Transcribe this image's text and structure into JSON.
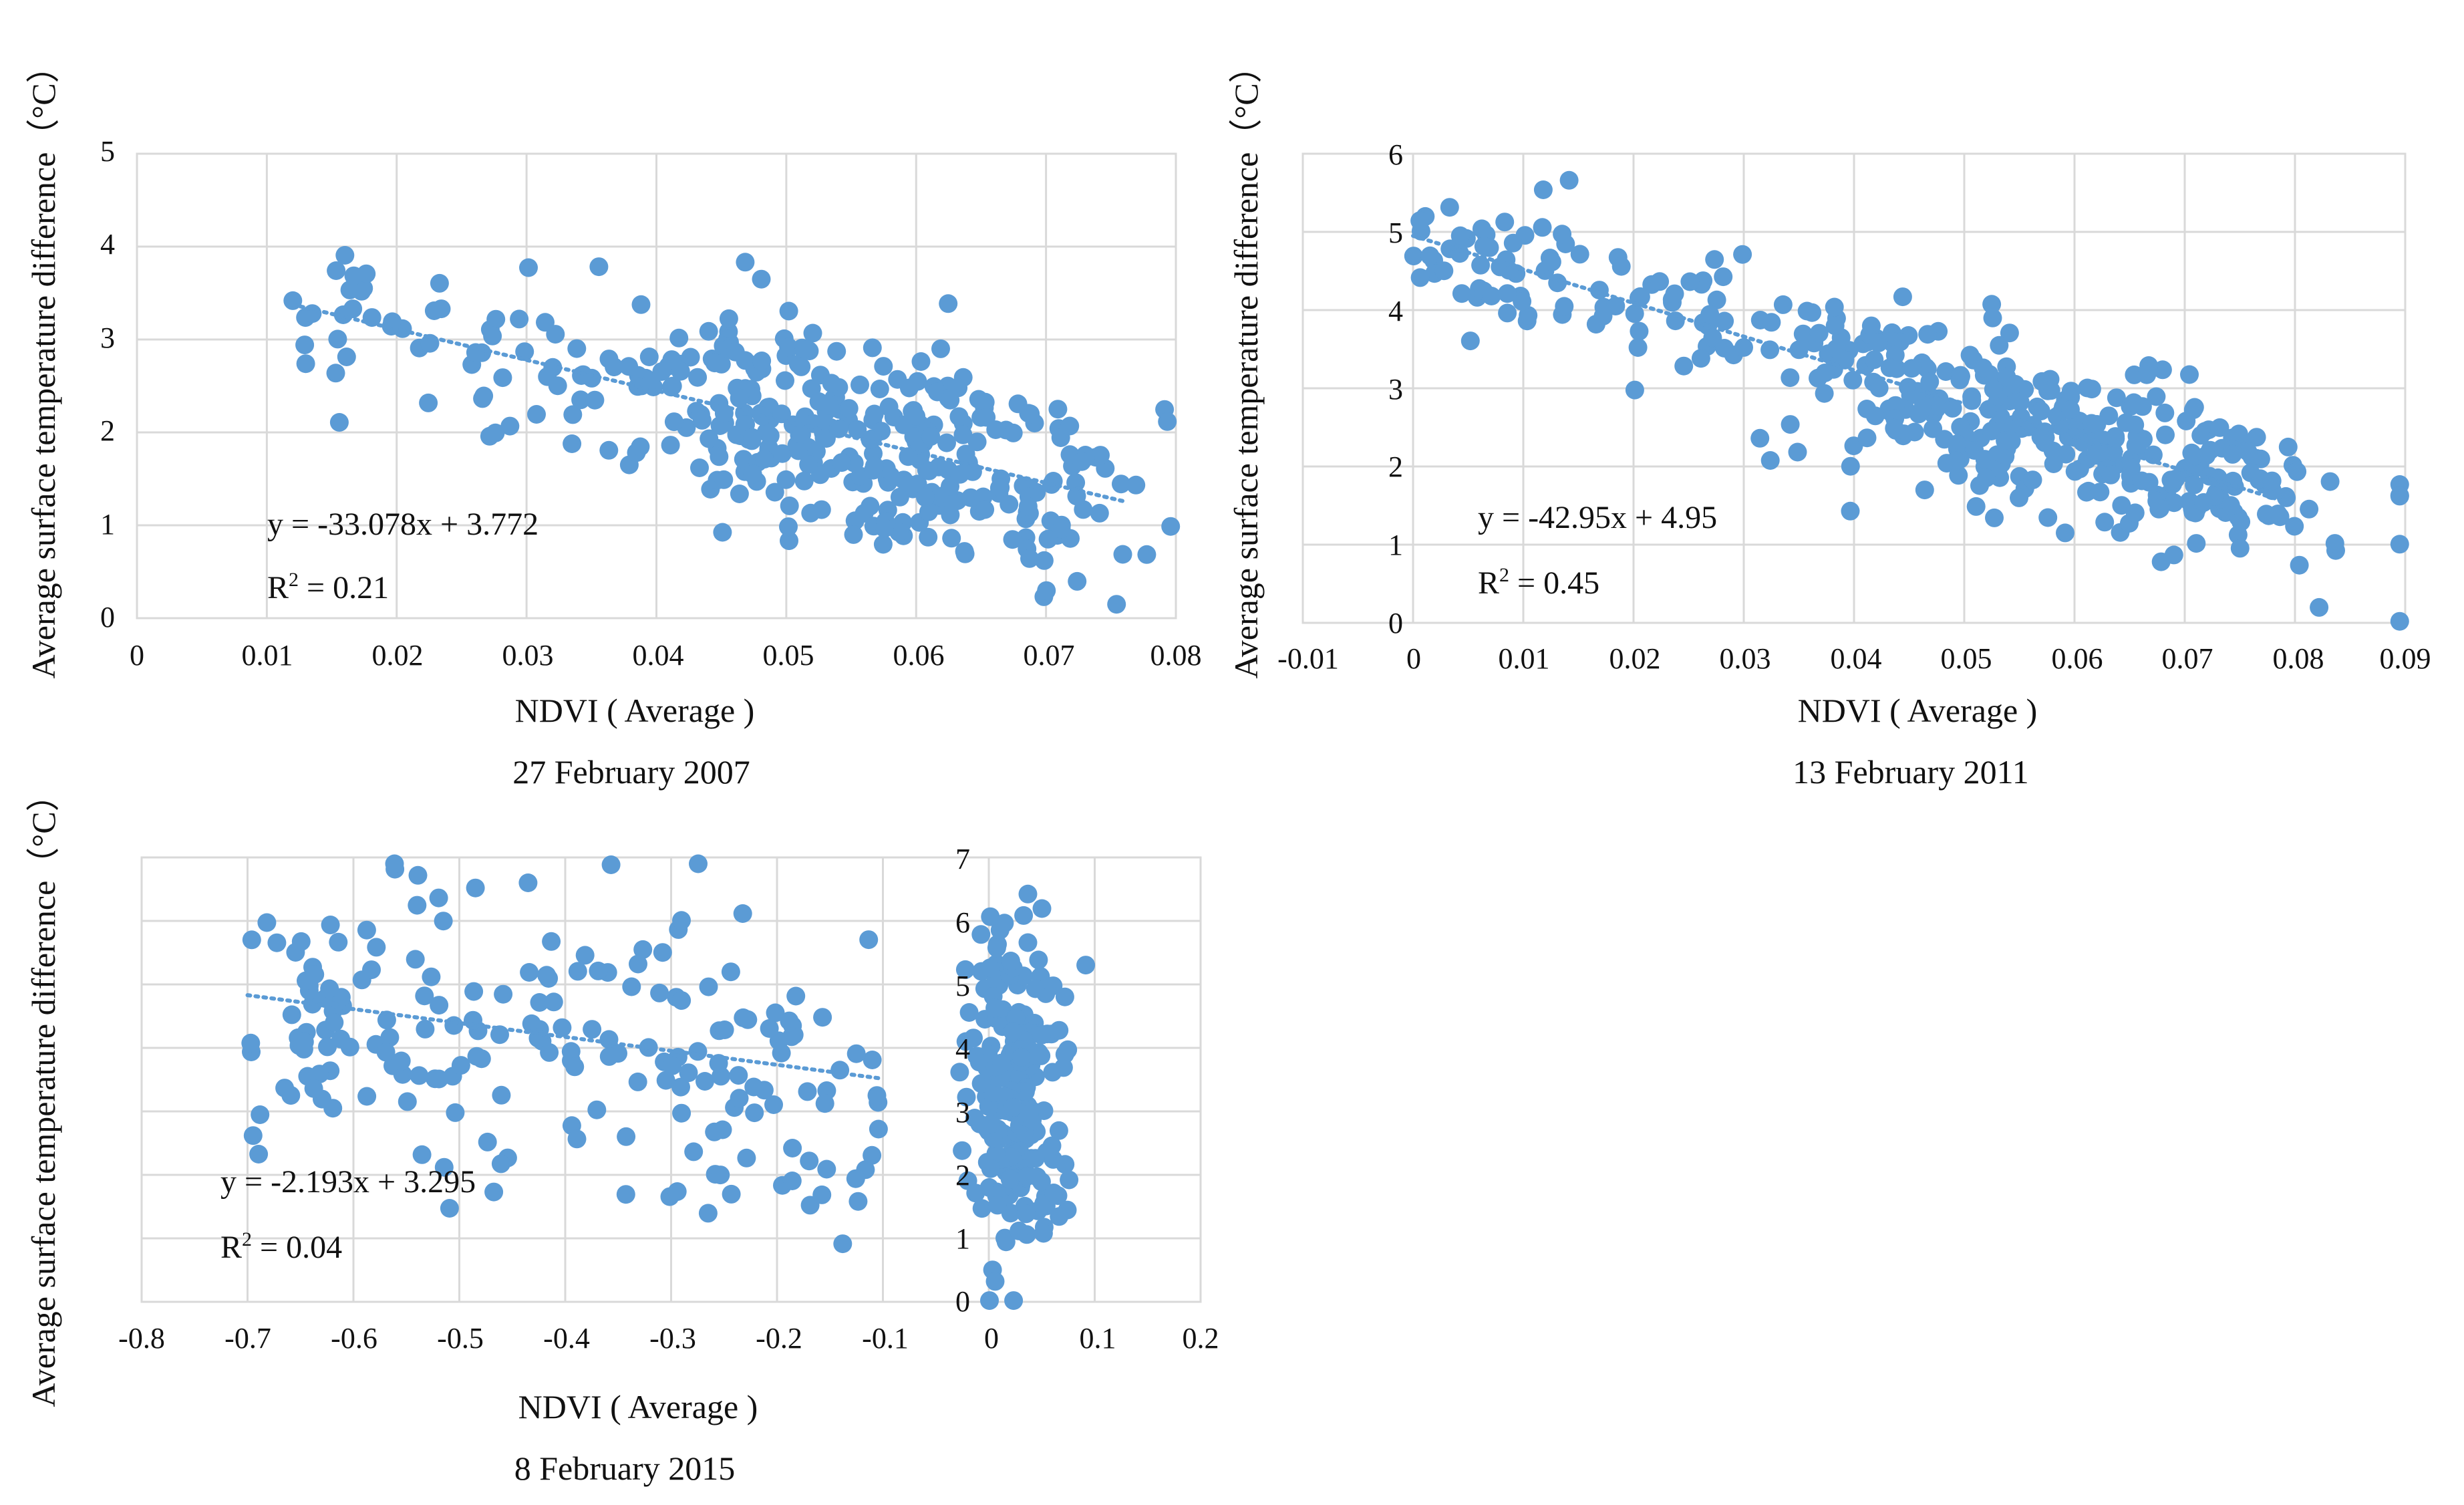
{
  "figure": {
    "colors": {
      "point": "#5b9bd5",
      "trend": "#5b9bd5",
      "grid": "#d9d9d9",
      "text": "#111111"
    }
  },
  "chart_data": [
    {
      "type": "scatter",
      "caption": "27 February 2007",
      "xlabel": "NDVI ( Average )",
      "ylabel": "Average surface temperature difference（°C）",
      "xlim": [
        0,
        0.08
      ],
      "ylim": [
        0,
        5
      ],
      "xticks": [
        "0",
        "0.01",
        "0.02",
        "0.03",
        "0.04",
        "0.05",
        "0.06",
        "0.07",
        "0.08"
      ],
      "yticks": [
        "0",
        "1",
        "2",
        "3",
        "4",
        "5"
      ],
      "equation": "y = -33.078x + 3.772",
      "r2_label": "R",
      "r2_sup": "2",
      "r2_value": " = 0.21",
      "trend": {
        "slope": -33.078,
        "intercept": 3.772,
        "x_range": [
          0.012,
          0.076
        ]
      },
      "points_generator": {
        "seed": 11,
        "count": 380,
        "noise": 0.55,
        "x_center": 0.056,
        "x_spread": 0.01
      }
    },
    {
      "type": "scatter",
      "caption": "13 February 2011",
      "xlabel": "NDVI ( Average )",
      "ylabel": "Average surface temperature difference（°C）",
      "xlim": [
        -0.01,
        0.09
      ],
      "ylim": [
        0,
        6
      ],
      "xticks": [
        "-0.01",
        "0",
        "0.01",
        "0.02",
        "0.03",
        "0.04",
        "0.05",
        "0.06",
        "0.07",
        "0.08",
        "0.09"
      ],
      "yticks": [
        "0",
        "1",
        "2",
        "3",
        "4",
        "5",
        "6"
      ],
      "equation": "y = -42.95x + 4.95",
      "r2_label": "R",
      "r2_sup": "2",
      "r2_value": " = 0.45",
      "trend": {
        "slope": -42.95,
        "intercept": 4.95,
        "x_range": [
          0.0,
          0.08
        ]
      },
      "points_generator": {
        "seed": 23,
        "count": 430,
        "noise": 0.5,
        "x_center": 0.058,
        "x_spread": 0.014
      }
    },
    {
      "type": "scatter",
      "caption": "8 February 2015",
      "xlabel": "NDVI ( Average )",
      "ylabel": "Average surface temperature difference（°C）",
      "xlim": [
        -0.8,
        0.2
      ],
      "ylim": [
        0,
        7
      ],
      "xticks": [
        "-0.8",
        "-0.7",
        "-0.6",
        "-0.5",
        "-0.4",
        "-0.3",
        "-0.2",
        "-0.1",
        "0",
        "0.1",
        "0.2"
      ],
      "yticks": [
        "0",
        "1",
        "2",
        "3",
        "4",
        "5",
        "6",
        "7"
      ],
      "equation": "y = -2.193x + 3.295",
      "r2_label": "R",
      "r2_sup": "2",
      "r2_value": " = 0.04",
      "trend": {
        "slope": -2.193,
        "intercept": 3.295,
        "x_range": [
          -0.7,
          -0.1
        ]
      },
      "points_generator": {
        "seed": 37,
        "count": 420,
        "noise": 1.3,
        "x_center": 0.025,
        "x_spread": 0.022
      }
    }
  ]
}
